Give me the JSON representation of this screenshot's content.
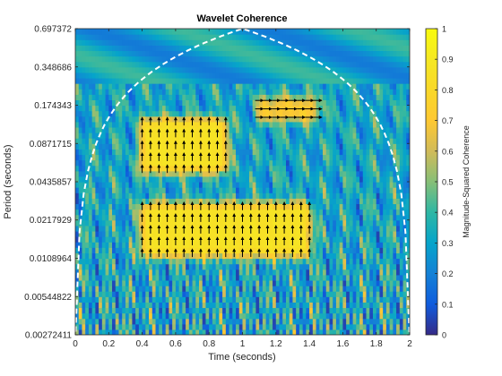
{
  "chart_data": {
    "type": "heatmap",
    "title": "Wavelet Coherence",
    "xlabel": "Time (seconds)",
    "ylabel": "Period (seconds)",
    "colorbar_label": "Magnitude-Squared Coherence",
    "colormap": "parula",
    "x_range": [
      0,
      2
    ],
    "x_ticks": [
      0,
      0.2,
      0.4,
      0.6,
      0.8,
      1,
      1.2,
      1.4,
      1.6,
      1.8,
      2
    ],
    "x_tick_labels": [
      "0",
      "0.2",
      "0.4",
      "0.6",
      "0.8",
      "1",
      "1.2",
      "1.4",
      "1.6",
      "1.8",
      "2"
    ],
    "y_scale": "log2",
    "y_range": [
      0.00272411,
      0.697372
    ],
    "y_ticks": [
      0.00272411,
      0.00544822,
      0.0108964,
      0.0217929,
      0.0435857,
      0.0871715,
      0.174343,
      0.348686,
      0.697372
    ],
    "y_tick_labels": [
      "0.00272411",
      "0.00544822",
      "0.0108964",
      "0.0217929",
      "0.0435857",
      "0.0871715",
      "0.174343",
      "0.348686",
      "0.697372"
    ],
    "color_range": [
      0,
      1
    ],
    "colorbar_ticks": [
      0,
      0.1,
      0.2,
      0.3,
      0.4,
      0.5,
      0.6,
      0.7,
      0.8,
      0.9,
      1
    ],
    "colorbar_tick_labels": [
      "0",
      "0.1",
      "0.2",
      "0.3",
      "0.4",
      "0.5",
      "0.6",
      "0.7",
      "0.8",
      "0.9",
      "1"
    ],
    "high_coherence_regions": [
      {
        "x_range": [
          0.4,
          1.4
        ],
        "period_range": [
          0.012,
          0.028
        ],
        "coherence": 0.9,
        "phase_arrow": "up"
      },
      {
        "x_range": [
          0.4,
          0.9
        ],
        "period_range": [
          0.055,
          0.13
        ],
        "coherence": 0.9,
        "phase_arrow": "up"
      },
      {
        "x_range": [
          1.1,
          1.45
        ],
        "period_range": [
          0.14,
          0.19
        ],
        "coherence": 0.65,
        "phase_arrow": "right"
      }
    ],
    "cone_of_influence": {
      "style": "dashed",
      "color": "#ffffff",
      "peak_x": 1,
      "peak_period": 0.697372
    }
  }
}
